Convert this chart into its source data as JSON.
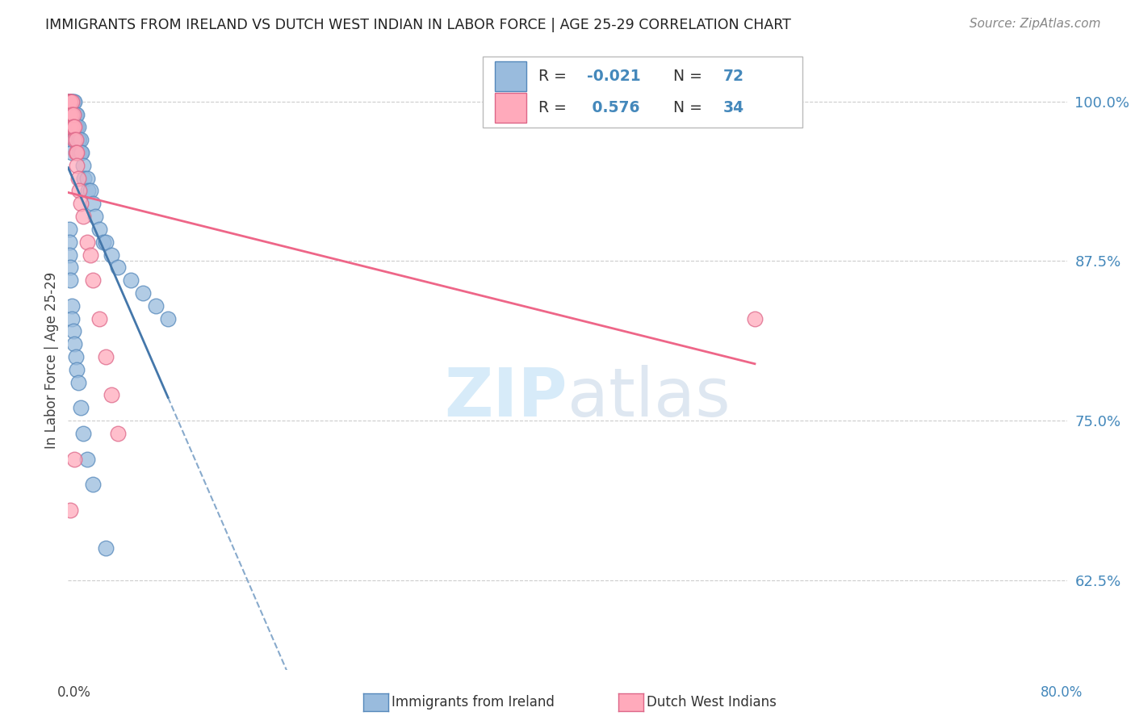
{
  "title": "IMMIGRANTS FROM IRELAND VS DUTCH WEST INDIAN IN LABOR FORCE | AGE 25-29 CORRELATION CHART",
  "source": "Source: ZipAtlas.com",
  "ylabel": "In Labor Force | Age 25-29",
  "ytick_values": [
    0.625,
    0.75,
    0.875,
    1.0
  ],
  "ytick_labels": [
    "62.5%",
    "75.0%",
    "87.5%",
    "100.0%"
  ],
  "xlim": [
    0.0,
    0.8
  ],
  "ylim": [
    0.555,
    1.04
  ],
  "r_ireland": -0.021,
  "n_ireland": 72,
  "r_dutch": 0.576,
  "n_dutch": 34,
  "blue_fill": "#99BBDD",
  "blue_edge": "#5588BB",
  "pink_fill": "#FFAABB",
  "pink_edge": "#DD6688",
  "blue_line": "#4477AA",
  "blue_dash": "#88AACC",
  "pink_line": "#EE6688",
  "watermark_color": "#D0E8F8",
  "ireland_x": [
    0.001,
    0.001,
    0.001,
    0.001,
    0.001,
    0.001,
    0.001,
    0.001,
    0.001,
    0.001,
    0.002,
    0.002,
    0.002,
    0.002,
    0.003,
    0.003,
    0.003,
    0.003,
    0.003,
    0.003,
    0.004,
    0.004,
    0.004,
    0.005,
    0.005,
    0.005,
    0.005,
    0.006,
    0.006,
    0.007,
    0.007,
    0.007,
    0.008,
    0.008,
    0.009,
    0.009,
    0.01,
    0.01,
    0.011,
    0.012,
    0.013,
    0.015,
    0.016,
    0.018,
    0.02,
    0.022,
    0.025,
    0.028,
    0.03,
    0.035,
    0.04,
    0.05,
    0.06,
    0.07,
    0.08,
    0.001,
    0.001,
    0.001,
    0.002,
    0.002,
    0.003,
    0.003,
    0.004,
    0.005,
    0.006,
    0.007,
    0.008,
    0.01,
    0.012,
    0.015,
    0.02,
    0.03
  ],
  "ireland_y": [
    1.0,
    1.0,
    1.0,
    1.0,
    1.0,
    1.0,
    1.0,
    1.0,
    0.99,
    0.98,
    1.0,
    1.0,
    0.99,
    0.98,
    1.0,
    1.0,
    0.99,
    0.98,
    0.97,
    0.96,
    1.0,
    0.99,
    0.98,
    1.0,
    0.99,
    0.98,
    0.97,
    0.99,
    0.98,
    0.99,
    0.98,
    0.97,
    0.98,
    0.97,
    0.97,
    0.96,
    0.97,
    0.96,
    0.96,
    0.95,
    0.94,
    0.94,
    0.93,
    0.93,
    0.92,
    0.91,
    0.9,
    0.89,
    0.89,
    0.88,
    0.87,
    0.86,
    0.85,
    0.84,
    0.83,
    0.9,
    0.89,
    0.88,
    0.87,
    0.86,
    0.84,
    0.83,
    0.82,
    0.81,
    0.8,
    0.79,
    0.78,
    0.76,
    0.74,
    0.72,
    0.7,
    0.65
  ],
  "dutch_x": [
    0.001,
    0.001,
    0.001,
    0.001,
    0.001,
    0.001,
    0.002,
    0.002,
    0.002,
    0.003,
    0.003,
    0.003,
    0.004,
    0.004,
    0.005,
    0.005,
    0.006,
    0.006,
    0.007,
    0.007,
    0.008,
    0.009,
    0.01,
    0.012,
    0.015,
    0.018,
    0.02,
    0.025,
    0.03,
    0.035,
    0.04,
    0.55,
    0.002,
    0.005
  ],
  "dutch_y": [
    1.0,
    1.0,
    1.0,
    1.0,
    0.99,
    0.98,
    1.0,
    0.99,
    0.98,
    1.0,
    0.99,
    0.98,
    0.99,
    0.98,
    0.98,
    0.97,
    0.97,
    0.96,
    0.96,
    0.95,
    0.94,
    0.93,
    0.92,
    0.91,
    0.89,
    0.88,
    0.86,
    0.83,
    0.8,
    0.77,
    0.74,
    0.83,
    0.68,
    0.72
  ]
}
